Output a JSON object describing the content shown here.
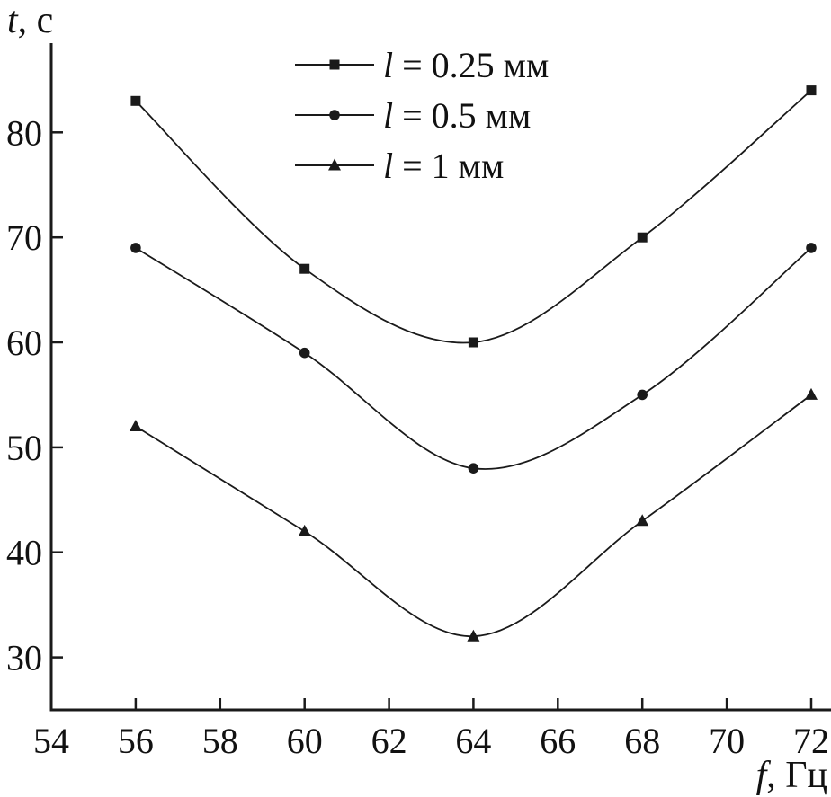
{
  "chart_data": {
    "type": "line",
    "x": [
      56,
      60,
      64,
      68,
      72
    ],
    "series": [
      {
        "name": "l = 0.25 мм",
        "var": "l",
        "label_rest": " = 0.25 мм",
        "marker": "square",
        "values": [
          83,
          67,
          60,
          70,
          84
        ]
      },
      {
        "name": "l = 0.5 мм",
        "var": "l",
        "label_rest": " = 0.5 мм",
        "marker": "circle",
        "values": [
          69,
          59,
          48,
          55,
          69
        ]
      },
      {
        "name": "l = 1 мм",
        "var": "l",
        "label_rest": " = 1 мм",
        "marker": "triangle",
        "values": [
          52,
          42,
          32,
          43,
          55
        ]
      }
    ],
    "xlabel": "f, Гц",
    "xlabel_var": "f",
    "xlabel_unit": ", Гц",
    "ylabel": "t, с",
    "ylabel_var": "t",
    "ylabel_unit": ", с",
    "xlim": [
      54,
      72
    ],
    "ylim": [
      25,
      88.5
    ],
    "xticks": [
      54,
      56,
      58,
      60,
      62,
      64,
      66,
      68,
      70,
      72
    ],
    "yticks": [
      30,
      40,
      50,
      60,
      70,
      80
    ],
    "grid": false,
    "legend_position": "top-center",
    "line_color": "#1a1a1a",
    "background": "#ffffff"
  }
}
